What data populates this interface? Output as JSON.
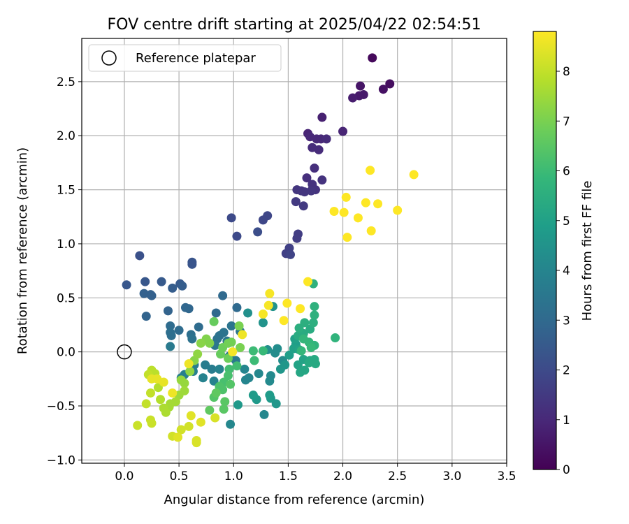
{
  "chart_data": {
    "type": "scatter",
    "title": "FOV centre drift starting at 2025/04/22 02:54:51",
    "xlabel": "Angular distance from reference (arcmin)",
    "ylabel": "Rotation from reference (arcmin)",
    "xlim": [
      -0.39,
      3.5
    ],
    "ylim": [
      -1.03,
      2.9
    ],
    "xticks": [
      "0.0",
      "0.5",
      "1.0",
      "1.5",
      "2.0",
      "2.5",
      "3.0",
      "3.5"
    ],
    "yticks": [
      "−1.0",
      "−0.5",
      "0.0",
      "0.5",
      "1.0",
      "1.5",
      "2.0",
      "2.5"
    ],
    "grid": true,
    "legend": {
      "placement": "top-left",
      "entries": [
        "Reference platepar"
      ]
    },
    "reference_point": {
      "name": "Reference platepar",
      "x": 0.0,
      "y": 0.0,
      "marker": "open-circle"
    },
    "colorbar": {
      "label": "Hours from first FF file",
      "min": 0,
      "max": 8.8,
      "ticks": [
        "0",
        "1",
        "2",
        "3",
        "4",
        "5",
        "6",
        "7",
        "8"
      ],
      "colormap": "viridis",
      "stops": [
        "#440154",
        "#482878",
        "#3e4989",
        "#31688e",
        "#26828e",
        "#1f9e89",
        "#35b779",
        "#6ece58",
        "#b5de2b",
        "#fde725"
      ]
    },
    "points": [
      [
        2.27,
        2.72,
        0.2
      ],
      [
        2.43,
        2.48,
        0.3
      ],
      [
        2.37,
        2.43,
        0.4
      ],
      [
        2.16,
        2.46,
        0.5
      ],
      [
        2.19,
        2.38,
        0.6
      ],
      [
        2.15,
        2.37,
        0.6
      ],
      [
        2.09,
        2.35,
        0.7
      ],
      [
        1.81,
        2.17,
        0.8
      ],
      [
        2.0,
        2.04,
        0.9
      ],
      [
        1.68,
        2.02,
        0.9
      ],
      [
        1.7,
        1.99,
        1.0
      ],
      [
        1.76,
        1.97,
        1.0
      ],
      [
        1.8,
        1.97,
        1.0
      ],
      [
        1.85,
        1.97,
        1.1
      ],
      [
        1.72,
        1.89,
        1.1
      ],
      [
        1.78,
        1.87,
        1.1
      ],
      [
        1.74,
        1.7,
        1.2
      ],
      [
        1.67,
        1.61,
        1.2
      ],
      [
        1.81,
        1.59,
        1.3
      ],
      [
        1.72,
        1.55,
        1.3
      ],
      [
        1.75,
        1.5,
        1.3
      ],
      [
        1.71,
        1.49,
        1.4
      ],
      [
        1.62,
        1.49,
        1.4
      ],
      [
        1.58,
        1.5,
        1.4
      ],
      [
        1.65,
        1.48,
        1.4
      ],
      [
        1.57,
        1.39,
        1.5
      ],
      [
        1.64,
        1.35,
        1.5
      ],
      [
        1.59,
        1.09,
        1.6
      ],
      [
        1.58,
        1.05,
        1.6
      ],
      [
        1.51,
        0.96,
        1.7
      ],
      [
        1.48,
        0.91,
        1.7
      ],
      [
        1.52,
        0.9,
        1.8
      ],
      [
        1.31,
        1.26,
        1.9
      ],
      [
        1.27,
        1.22,
        1.9
      ],
      [
        0.98,
        1.24,
        2.0
      ],
      [
        1.03,
        1.07,
        2.0
      ],
      [
        1.22,
        1.11,
        2.1
      ],
      [
        0.14,
        0.89,
        2.2
      ],
      [
        0.62,
        0.83,
        2.3
      ],
      [
        0.62,
        0.81,
        2.3
      ],
      [
        0.02,
        0.62,
        2.4
      ],
      [
        0.19,
        0.65,
        2.4
      ],
      [
        0.34,
        0.65,
        2.5
      ],
      [
        0.51,
        0.63,
        2.5
      ],
      [
        0.53,
        0.61,
        2.6
      ],
      [
        0.44,
        0.59,
        2.6
      ],
      [
        0.18,
        0.54,
        2.7
      ],
      [
        0.24,
        0.53,
        2.7
      ],
      [
        0.25,
        0.52,
        2.7
      ],
      [
        0.2,
        0.33,
        2.8
      ],
      [
        0.4,
        0.38,
        2.8
      ],
      [
        0.56,
        0.41,
        2.9
      ],
      [
        0.59,
        0.4,
        2.9
      ],
      [
        0.9,
        0.52,
        3.0
      ],
      [
        0.84,
        0.36,
        3.0
      ],
      [
        1.03,
        0.41,
        3.0
      ],
      [
        0.42,
        0.24,
        3.1
      ],
      [
        0.68,
        0.23,
        3.1
      ],
      [
        0.5,
        0.2,
        3.1
      ],
      [
        0.42,
        0.18,
        3.2
      ],
      [
        0.61,
        0.16,
        3.2
      ],
      [
        0.43,
        0.15,
        3.2
      ],
      [
        0.62,
        0.12,
        3.3
      ],
      [
        0.85,
        0.12,
        3.3
      ],
      [
        0.87,
        0.15,
        3.3
      ],
      [
        0.91,
        0.18,
        3.4
      ],
      [
        0.98,
        0.24,
        3.4
      ],
      [
        1.06,
        0.19,
        3.4
      ],
      [
        0.94,
        0.1,
        3.5
      ],
      [
        0.83,
        0.06,
        3.5
      ],
      [
        0.42,
        0.05,
        3.6
      ],
      [
        0.96,
        -0.04,
        3.6
      ],
      [
        1.02,
        -0.08,
        3.6
      ],
      [
        0.74,
        -0.12,
        3.7
      ],
      [
        0.8,
        -0.16,
        3.7
      ],
      [
        0.64,
        -0.12,
        3.7
      ],
      [
        0.63,
        -0.18,
        3.8
      ],
      [
        0.55,
        -0.21,
        3.8
      ],
      [
        0.52,
        -0.24,
        3.8
      ],
      [
        0.72,
        -0.24,
        3.9
      ],
      [
        0.82,
        -0.27,
        3.9
      ],
      [
        0.87,
        -0.16,
        3.9
      ],
      [
        1.1,
        -0.16,
        4.0
      ],
      [
        1.11,
        -0.26,
        4.0
      ],
      [
        1.14,
        -0.24,
        4.0
      ],
      [
        0.97,
        -0.67,
        4.1
      ],
      [
        1.28,
        -0.58,
        4.1
      ],
      [
        1.23,
        -0.2,
        4.1
      ],
      [
        1.33,
        -0.27,
        4.2
      ],
      [
        1.34,
        -0.22,
        4.2
      ],
      [
        1.45,
        -0.08,
        4.3
      ],
      [
        1.38,
        -0.01,
        4.3
      ],
      [
        1.4,
        0.03,
        4.3
      ],
      [
        1.31,
        0.02,
        4.4
      ],
      [
        1.13,
        0.36,
        4.4
      ],
      [
        1.36,
        0.42,
        4.5
      ],
      [
        1.27,
        0.27,
        4.5
      ],
      [
        1.43,
        -0.16,
        4.6
      ],
      [
        1.47,
        -0.12,
        4.6
      ],
      [
        1.39,
        -0.48,
        4.6
      ],
      [
        1.34,
        -0.43,
        4.7
      ],
      [
        1.21,
        -0.44,
        4.7
      ],
      [
        1.04,
        -0.49,
        4.7
      ],
      [
        1.18,
        -0.4,
        4.8
      ],
      [
        1.33,
        -0.4,
        4.8
      ],
      [
        1.51,
        -0.03,
        4.9
      ],
      [
        1.57,
        0.07,
        4.9
      ],
      [
        1.56,
        0.12,
        5.0
      ],
      [
        1.55,
        0.03,
        5.0
      ],
      [
        1.6,
        0.02,
        5.1
      ],
      [
        1.59,
        -0.12,
        5.1
      ],
      [
        1.64,
        -0.07,
        5.1
      ],
      [
        1.7,
        -0.08,
        5.2
      ],
      [
        1.65,
        -0.17,
        5.2
      ],
      [
        1.61,
        -0.19,
        5.2
      ],
      [
        1.75,
        -0.11,
        5.3
      ],
      [
        1.74,
        -0.07,
        5.3
      ],
      [
        1.69,
        -0.1,
        5.3
      ],
      [
        1.59,
        0.15,
        5.4
      ],
      [
        1.64,
        0.17,
        5.4
      ],
      [
        1.7,
        0.21,
        5.4
      ],
      [
        1.6,
        0.22,
        5.5
      ],
      [
        1.65,
        0.27,
        5.5
      ],
      [
        1.73,
        0.27,
        5.5
      ],
      [
        1.74,
        0.34,
        5.6
      ],
      [
        1.74,
        0.42,
        5.6
      ],
      [
        1.73,
        0.63,
        5.6
      ],
      [
        1.93,
        0.13,
        5.7
      ],
      [
        1.74,
        0.06,
        5.7
      ],
      [
        1.69,
        0.09,
        5.8
      ],
      [
        1.64,
        0.12,
        5.8
      ],
      [
        1.62,
        0.01,
        5.8
      ],
      [
        1.71,
        0.04,
        5.9
      ],
      [
        1.27,
        0.01,
        5.9
      ],
      [
        1.18,
        0.01,
        6.0
      ],
      [
        1.19,
        -0.08,
        6.0
      ],
      [
        1.03,
        -0.13,
        6.1
      ],
      [
        0.96,
        -0.16,
        6.1
      ],
      [
        0.95,
        -0.22,
        6.2
      ],
      [
        0.91,
        -0.28,
        6.2
      ],
      [
        0.87,
        -0.32,
        6.3
      ],
      [
        0.9,
        -0.35,
        6.3
      ],
      [
        0.97,
        -0.3,
        6.4
      ],
      [
        0.82,
        -0.42,
        6.4
      ],
      [
        0.92,
        -0.46,
        6.5
      ],
      [
        0.91,
        -0.53,
        6.5
      ],
      [
        0.78,
        -0.54,
        6.6
      ],
      [
        0.84,
        -0.38,
        6.6
      ],
      [
        0.82,
        0.28,
        6.7
      ],
      [
        0.88,
        -0.02,
        6.7
      ],
      [
        0.95,
        -0.06,
        6.8
      ],
      [
        0.9,
        0.04,
        6.8
      ],
      [
        0.95,
        0.08,
        6.9
      ],
      [
        0.98,
        0.09,
        6.9
      ],
      [
        1.06,
        0.04,
        7.0
      ],
      [
        1.05,
        0.24,
        7.0
      ],
      [
        0.75,
        0.12,
        7.1
      ],
      [
        0.78,
        0.08,
        7.1
      ],
      [
        0.7,
        0.08,
        7.2
      ],
      [
        0.64,
        -0.08,
        7.2
      ],
      [
        0.67,
        -0.02,
        7.3
      ],
      [
        0.6,
        -0.18,
        7.3
      ],
      [
        0.52,
        -0.26,
        7.4
      ],
      [
        0.55,
        -0.29,
        7.4
      ],
      [
        0.55,
        -0.36,
        7.5
      ],
      [
        0.5,
        -0.4,
        7.5
      ],
      [
        0.47,
        -0.46,
        7.6
      ],
      [
        0.42,
        -0.48,
        7.6
      ],
      [
        0.41,
        -0.51,
        7.6
      ],
      [
        0.38,
        -0.56,
        7.7
      ],
      [
        0.36,
        -0.52,
        7.7
      ],
      [
        0.33,
        -0.44,
        7.8
      ],
      [
        0.31,
        -0.33,
        7.8
      ],
      [
        0.28,
        -0.2,
        7.9
      ],
      [
        0.25,
        -0.17,
        7.9
      ],
      [
        0.22,
        -0.21,
        8.0
      ],
      [
        0.24,
        -0.38,
        8.0
      ],
      [
        0.2,
        -0.48,
        8.0
      ],
      [
        0.12,
        -0.68,
        8.1
      ],
      [
        0.24,
        -0.63,
        8.1
      ],
      [
        0.25,
        -0.66,
        8.1
      ],
      [
        0.44,
        -0.78,
        8.2
      ],
      [
        0.52,
        -0.72,
        8.2
      ],
      [
        0.59,
        -0.69,
        8.2
      ],
      [
        0.66,
        -0.82,
        8.3
      ],
      [
        0.66,
        -0.84,
        8.3
      ],
      [
        0.83,
        -0.61,
        8.3
      ],
      [
        0.7,
        -0.65,
        8.4
      ],
      [
        0.61,
        -0.59,
        8.4
      ],
      [
        0.49,
        -0.79,
        8.4
      ],
      [
        0.25,
        -0.25,
        8.5
      ],
      [
        0.3,
        -0.25,
        8.5
      ],
      [
        0.36,
        -0.28,
        8.5
      ],
      [
        0.44,
        -0.38,
        8.6
      ],
      [
        0.59,
        -0.11,
        8.6
      ],
      [
        1.08,
        0.16,
        8.6
      ],
      [
        0.99,
        0.0,
        8.7
      ],
      [
        1.27,
        0.35,
        8.7
      ],
      [
        1.32,
        0.43,
        8.7
      ],
      [
        1.33,
        0.54,
        8.7
      ],
      [
        1.46,
        0.29,
        8.8
      ],
      [
        1.49,
        0.45,
        8.8
      ],
      [
        1.61,
        0.4,
        8.8
      ],
      [
        1.68,
        0.65,
        8.8
      ],
      [
        2.25,
        1.68,
        8.8
      ],
      [
        2.65,
        1.64,
        8.8
      ],
      [
        2.03,
        1.43,
        8.8
      ],
      [
        2.21,
        1.38,
        8.8
      ],
      [
        2.32,
        1.37,
        8.8
      ],
      [
        1.92,
        1.3,
        8.8
      ],
      [
        2.01,
        1.29,
        8.8
      ],
      [
        2.5,
        1.31,
        8.8
      ],
      [
        2.14,
        1.24,
        8.8
      ],
      [
        2.26,
        1.12,
        8.8
      ],
      [
        2.04,
        1.06,
        8.8
      ]
    ]
  }
}
